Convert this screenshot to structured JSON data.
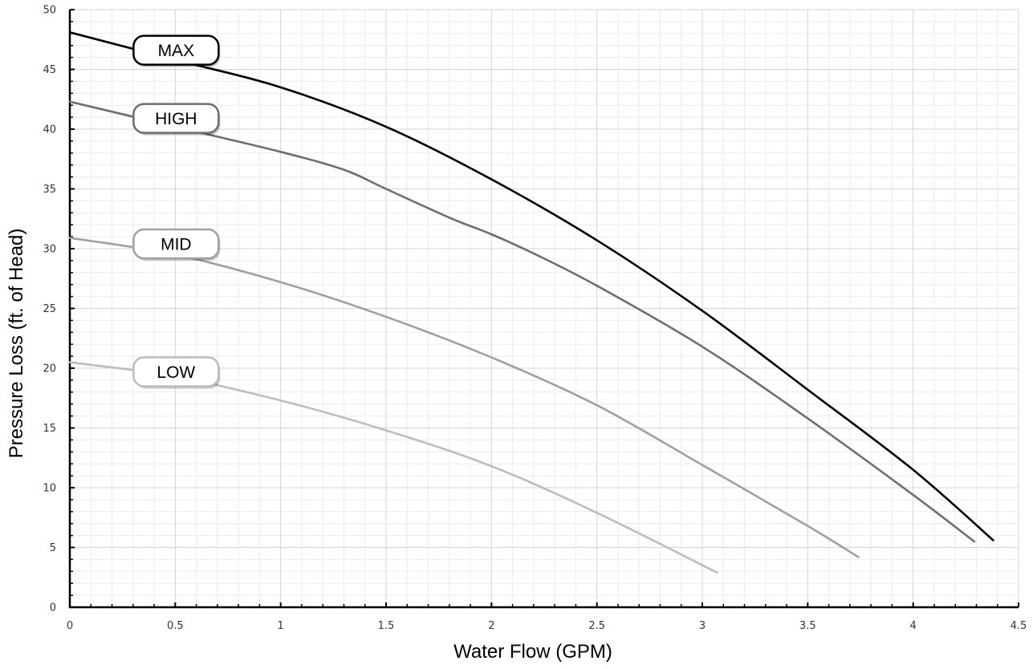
{
  "chart_data": {
    "type": "line",
    "xlabel": "Water Flow (GPM)",
    "ylabel": "Pressure Loss (ft. of Head)",
    "xlim": [
      0,
      4.5
    ],
    "ylim": [
      0,
      50
    ],
    "x_ticks": [
      "0",
      "0.5",
      "1",
      "1.5",
      "2",
      "2.5",
      "3",
      "3.5",
      "4",
      "4.5"
    ],
    "y_ticks": [
      "0",
      "5",
      "10",
      "15",
      "20",
      "25",
      "30",
      "35",
      "40",
      "45",
      "50"
    ],
    "grid": true,
    "series": [
      {
        "name": "MAX",
        "color": "#000000",
        "points": [
          [
            0,
            48.1
          ],
          [
            0.5,
            45.8
          ],
          [
            1,
            43.5
          ],
          [
            1.5,
            40.2
          ],
          [
            2,
            35.8
          ],
          [
            2.5,
            30.7
          ],
          [
            3,
            24.8
          ],
          [
            3.5,
            18.2
          ],
          [
            4,
            11.5
          ],
          [
            4.38,
            5.6
          ]
        ]
      },
      {
        "name": "HIGH",
        "color": "#6e6e6e",
        "points": [
          [
            0,
            42.3
          ],
          [
            0.5,
            40.2
          ],
          [
            1,
            38.1
          ],
          [
            1.3,
            36.6
          ],
          [
            1.5,
            35.0
          ],
          [
            1.8,
            32.6
          ],
          [
            2,
            31.2
          ],
          [
            2.2,
            29.6
          ],
          [
            2.5,
            26.9
          ],
          [
            3,
            21.8
          ],
          [
            3.5,
            15.8
          ],
          [
            4,
            9.4
          ],
          [
            4.29,
            5.5
          ]
        ]
      },
      {
        "name": "MID",
        "color": "#a0a0a0",
        "points": [
          [
            0,
            30.9
          ],
          [
            0.5,
            29.5
          ],
          [
            1,
            27.2
          ],
          [
            1.5,
            24.3
          ],
          [
            2,
            20.9
          ],
          [
            2.5,
            16.9
          ],
          [
            3,
            11.9
          ],
          [
            3.5,
            6.8
          ],
          [
            3.74,
            4.2
          ]
        ]
      },
      {
        "name": "LOW",
        "color": "#bdbdbd",
        "points": [
          [
            0,
            20.5
          ],
          [
            0.5,
            19.3
          ],
          [
            1,
            17.3
          ],
          [
            1.5,
            14.8
          ],
          [
            2,
            11.8
          ],
          [
            2.5,
            7.9
          ],
          [
            3.07,
            2.9
          ]
        ]
      }
    ],
    "series_labels": [
      {
        "text": "MAX",
        "at": [
          0.5,
          46.6
        ]
      },
      {
        "text": "HIGH",
        "at": [
          0.5,
          40.9
        ]
      },
      {
        "text": "MID",
        "at": [
          0.5,
          30.4
        ]
      },
      {
        "text": "LOW",
        "at": [
          0.5,
          19.7
        ]
      }
    ]
  }
}
